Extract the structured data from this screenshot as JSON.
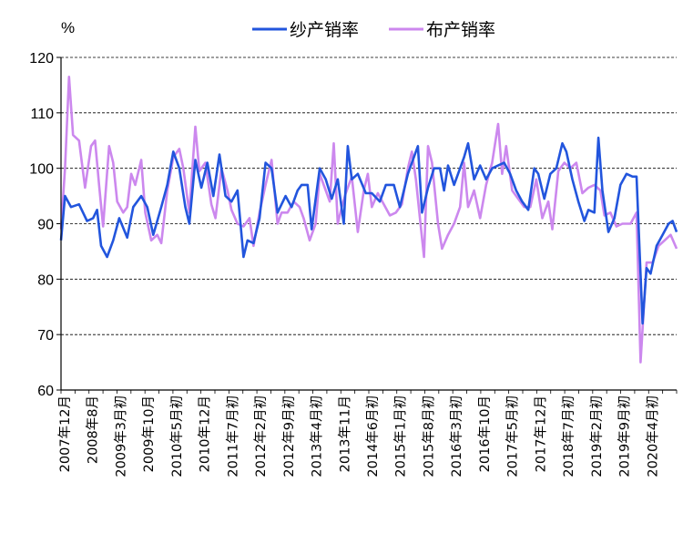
{
  "chart_data": {
    "type": "line",
    "title": "",
    "ylabel": "%",
    "xlabel": "",
    "ylim": [
      60,
      120
    ],
    "yticks": [
      60,
      70,
      80,
      90,
      100,
      110,
      120
    ],
    "grid": "horizontal dashed",
    "legend_position": "top",
    "xtick_labels": [
      "2007年12月",
      "2008年8月",
      "2009年3月初",
      "2009年10月",
      "2010年5月初",
      "2010年12月",
      "2011年7月初",
      "2012年2月初",
      "2012年9月初",
      "2013年4月初",
      "2013年11月",
      "2014年6月初",
      "2015年1月初",
      "2015年8月初",
      "2016年3月初",
      "2016年10月",
      "2017年5月初",
      "2017年12月",
      "2018年7月初",
      "2019年2月初",
      "2019年9月初",
      "2020年4月初"
    ],
    "series": [
      {
        "name": "纱产销率",
        "color": "#2255dd",
        "points": [
          [
            0,
            87
          ],
          [
            0.2,
            95
          ],
          [
            0.5,
            93
          ],
          [
            0.9,
            93.5
          ],
          [
            1.3,
            90.5
          ],
          [
            1.6,
            91
          ],
          [
            1.8,
            92.5
          ],
          [
            2.0,
            86
          ],
          [
            2.3,
            84
          ],
          [
            2.6,
            87
          ],
          [
            2.9,
            91
          ],
          [
            3.3,
            87.5
          ],
          [
            3.6,
            93
          ],
          [
            4.0,
            95
          ],
          [
            4.3,
            93
          ],
          [
            4.6,
            88
          ],
          [
            5.0,
            93
          ],
          [
            5.3,
            97
          ],
          [
            5.6,
            103
          ],
          [
            5.9,
            100
          ],
          [
            6.2,
            93
          ],
          [
            6.4,
            90
          ],
          [
            6.7,
            101.5
          ],
          [
            7.0,
            96.5
          ],
          [
            7.3,
            101
          ],
          [
            7.6,
            95
          ],
          [
            7.9,
            102.5
          ],
          [
            8.2,
            95
          ],
          [
            8.5,
            94
          ],
          [
            8.8,
            96
          ],
          [
            9.1,
            84
          ],
          [
            9.3,
            87
          ],
          [
            9.6,
            86.5
          ],
          [
            9.9,
            91
          ],
          [
            10.2,
            101
          ],
          [
            10.5,
            100
          ],
          [
            10.8,
            92
          ],
          [
            11.2,
            95
          ],
          [
            11.5,
            93
          ],
          [
            11.8,
            96
          ],
          [
            12.0,
            97
          ],
          [
            12.3,
            97
          ],
          [
            12.5,
            89
          ],
          [
            12.9,
            100
          ],
          [
            13.2,
            98
          ],
          [
            13.5,
            94.5
          ],
          [
            13.8,
            98
          ],
          [
            14.1,
            90
          ],
          [
            14.3,
            104
          ],
          [
            14.5,
            98
          ],
          [
            14.8,
            99
          ],
          [
            15.2,
            95.5
          ],
          [
            15.5,
            95.5
          ],
          [
            15.9,
            94
          ],
          [
            16.2,
            97
          ],
          [
            16.6,
            97
          ],
          [
            16.9,
            93
          ],
          [
            17.3,
            99
          ],
          [
            17.5,
            101
          ],
          [
            17.8,
            104
          ],
          [
            18.0,
            92
          ],
          [
            18.3,
            96.5
          ],
          [
            18.6,
            100
          ],
          [
            18.9,
            100
          ],
          [
            19.1,
            96
          ],
          [
            19.3,
            100.5
          ],
          [
            19.6,
            97
          ],
          [
            19.9,
            100
          ],
          [
            20.1,
            102
          ],
          [
            20.3,
            104.5
          ],
          [
            20.6,
            98
          ],
          [
            20.9,
            100.5
          ],
          [
            21.2,
            98
          ],
          [
            21.5,
            100
          ],
          [
            21.8,
            100.5
          ],
          [
            22.1,
            101
          ],
          [
            22.4,
            99
          ],
          [
            22.7,
            96
          ],
          [
            23.0,
            94
          ],
          [
            23.3,
            92.5
          ],
          [
            23.6,
            100
          ],
          [
            23.8,
            99
          ],
          [
            24.1,
            94.5
          ],
          [
            24.4,
            99
          ],
          [
            24.7,
            100
          ],
          [
            25.0,
            104.5
          ],
          [
            25.2,
            103
          ],
          [
            25.5,
            98
          ],
          [
            25.8,
            94
          ],
          [
            26.1,
            90.5
          ],
          [
            26.3,
            92.5
          ],
          [
            26.6,
            92
          ],
          [
            26.8,
            105.5
          ],
          [
            27.0,
            96
          ],
          [
            27.3,
            88.5
          ],
          [
            27.6,
            91
          ],
          [
            27.9,
            97
          ],
          [
            28.2,
            99
          ],
          [
            28.5,
            98.5
          ],
          [
            28.7,
            98.5
          ],
          [
            29.0,
            72
          ],
          [
            29.2,
            82
          ],
          [
            29.4,
            81
          ],
          [
            29.7,
            86
          ],
          [
            30.0,
            88
          ],
          [
            30.3,
            90
          ],
          [
            30.5,
            90.5
          ],
          [
            30.7,
            88.5
          ]
        ]
      },
      {
        "name": "布产销率",
        "color": "#cc88ee",
        "points": [
          [
            0,
            89
          ],
          [
            0.2,
            100
          ],
          [
            0.4,
            116.5
          ],
          [
            0.6,
            106
          ],
          [
            0.9,
            105
          ],
          [
            1.2,
            96.5
          ],
          [
            1.5,
            104
          ],
          [
            1.7,
            105
          ],
          [
            1.9,
            97
          ],
          [
            2.1,
            89.5
          ],
          [
            2.4,
            104
          ],
          [
            2.6,
            101
          ],
          [
            2.8,
            94
          ],
          [
            3.1,
            92
          ],
          [
            3.3,
            93
          ],
          [
            3.5,
            99
          ],
          [
            3.7,
            97
          ],
          [
            4.0,
            101.5
          ],
          [
            4.2,
            92
          ],
          [
            4.5,
            87
          ],
          [
            4.8,
            88
          ],
          [
            5.0,
            86.5
          ],
          [
            5.3,
            96
          ],
          [
            5.6,
            102
          ],
          [
            5.9,
            103.5
          ],
          [
            6.1,
            100
          ],
          [
            6.4,
            92
          ],
          [
            6.7,
            107.5
          ],
          [
            6.9,
            99.5
          ],
          [
            7.2,
            101
          ],
          [
            7.5,
            93.5
          ],
          [
            7.7,
            91
          ],
          [
            8.0,
            100
          ],
          [
            8.3,
            96
          ],
          [
            8.5,
            92.5
          ],
          [
            8.8,
            90
          ],
          [
            9.1,
            89.5
          ],
          [
            9.4,
            91
          ],
          [
            9.6,
            86
          ],
          [
            9.9,
            92
          ],
          [
            10.2,
            97
          ],
          [
            10.5,
            101.5
          ],
          [
            10.8,
            90
          ],
          [
            11.0,
            92
          ],
          [
            11.3,
            92
          ],
          [
            11.6,
            94
          ],
          [
            11.9,
            93
          ],
          [
            12.1,
            91
          ],
          [
            12.4,
            87
          ],
          [
            12.7,
            90
          ],
          [
            12.9,
            99
          ],
          [
            13.2,
            96
          ],
          [
            13.4,
            94
          ],
          [
            13.6,
            104.5
          ],
          [
            13.8,
            90
          ],
          [
            14.0,
            93
          ],
          [
            14.2,
            95.5
          ],
          [
            14.5,
            98.5
          ],
          [
            14.8,
            88.5
          ],
          [
            15.1,
            96
          ],
          [
            15.3,
            99
          ],
          [
            15.5,
            93
          ],
          [
            15.8,
            95.5
          ],
          [
            16.1,
            93.5
          ],
          [
            16.4,
            91.5
          ],
          [
            16.7,
            92
          ],
          [
            17.0,
            93.5
          ],
          [
            17.3,
            100
          ],
          [
            17.5,
            103
          ],
          [
            17.7,
            98
          ],
          [
            17.9,
            91
          ],
          [
            18.1,
            84
          ],
          [
            18.3,
            104
          ],
          [
            18.5,
            101
          ],
          [
            18.8,
            90
          ],
          [
            19.0,
            85.5
          ],
          [
            19.3,
            88
          ],
          [
            19.6,
            90
          ],
          [
            19.9,
            93
          ],
          [
            20.1,
            101
          ],
          [
            20.3,
            93
          ],
          [
            20.6,
            96
          ],
          [
            20.9,
            91
          ],
          [
            21.2,
            97
          ],
          [
            21.5,
            101
          ],
          [
            21.8,
            108
          ],
          [
            22.0,
            99
          ],
          [
            22.2,
            104
          ],
          [
            22.5,
            96
          ],
          [
            22.8,
            94.5
          ],
          [
            23.1,
            93
          ],
          [
            23.4,
            93
          ],
          [
            23.7,
            98
          ],
          [
            24.0,
            91
          ],
          [
            24.3,
            94
          ],
          [
            24.5,
            89
          ],
          [
            24.8,
            99.5
          ],
          [
            25.1,
            101
          ],
          [
            25.4,
            100
          ],
          [
            25.7,
            101
          ],
          [
            26.0,
            95.5
          ],
          [
            26.3,
            96.5
          ],
          [
            26.6,
            97
          ],
          [
            26.9,
            96
          ],
          [
            27.1,
            91.5
          ],
          [
            27.4,
            92
          ],
          [
            27.7,
            89.5
          ],
          [
            28.0,
            90
          ],
          [
            28.4,
            90
          ],
          [
            28.7,
            92
          ],
          [
            28.9,
            65
          ],
          [
            29.2,
            83
          ],
          [
            29.5,
            83
          ],
          [
            29.8,
            86
          ],
          [
            30.1,
            87
          ],
          [
            30.4,
            88
          ],
          [
            30.7,
            85.5
          ]
        ]
      }
    ]
  }
}
